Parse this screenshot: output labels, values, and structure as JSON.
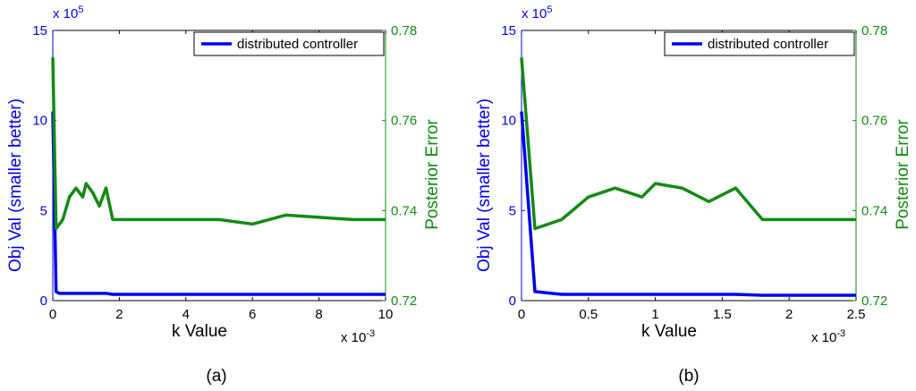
{
  "colors": {
    "obj": "#0000ee",
    "err": "#138a13",
    "axis": "#000000"
  },
  "chart_data": [
    {
      "type": "line",
      "caption": "(a)",
      "xlabel": "k Value",
      "ylabel_left": "Obj Val (smaller better)",
      "ylabel_right": "Posterior Error",
      "x_exponent_label": "x 10",
      "x_exponent_power": "-3",
      "y_exponent_label": "x 10",
      "y_exponent_power": "5",
      "xlim": [
        0,
        10
      ],
      "ylim_left": [
        0,
        15
      ],
      "ylim_right": [
        0.72,
        0.78
      ],
      "xticks": [
        0,
        2,
        4,
        6,
        8,
        10
      ],
      "yticks_left": [
        0,
        5,
        10,
        15
      ],
      "yticks_right": [
        0.72,
        0.74,
        0.76,
        0.78
      ],
      "legend": {
        "position": "top-right",
        "entries": [
          "distributed controller"
        ]
      },
      "series": [
        {
          "name": "distributed controller",
          "axis": "left",
          "color": "#0000ee",
          "x": [
            0,
            0.1,
            0.2,
            0.4,
            0.6,
            0.8,
            1.0,
            1.2,
            1.4,
            1.6,
            1.8,
            2,
            4,
            6,
            8,
            10
          ],
          "y": [
            10.5,
            0.5,
            0.4,
            0.4,
            0.4,
            0.4,
            0.4,
            0.4,
            0.4,
            0.4,
            0.35,
            0.35,
            0.35,
            0.35,
            0.35,
            0.35
          ]
        },
        {
          "name": "",
          "axis": "right",
          "color": "#138a13",
          "x": [
            0,
            0.1,
            0.3,
            0.5,
            0.7,
            0.9,
            1.0,
            1.2,
            1.4,
            1.6,
            1.8,
            3,
            4,
            5,
            6,
            7,
            8,
            9,
            10
          ],
          "y": [
            0.774,
            0.736,
            0.738,
            0.743,
            0.745,
            0.743,
            0.746,
            0.744,
            0.741,
            0.745,
            0.738,
            0.738,
            0.738,
            0.738,
            0.737,
            0.739,
            0.7385,
            0.738,
            0.738
          ]
        }
      ]
    },
    {
      "type": "line",
      "caption": "(b)",
      "xlabel": "k Value",
      "ylabel_left": "Obj Val (smaller better)",
      "ylabel_right": "Posterior Error",
      "x_exponent_label": "x 10",
      "x_exponent_power": "-3",
      "y_exponent_label": "x 10",
      "y_exponent_power": "5",
      "xlim": [
        0,
        2.5
      ],
      "ylim_left": [
        0,
        15
      ],
      "ylim_right": [
        0.72,
        0.78
      ],
      "xticks": [
        0,
        0.5,
        1,
        1.5,
        2,
        2.5
      ],
      "yticks_left": [
        0,
        5,
        10,
        15
      ],
      "yticks_right": [
        0.72,
        0.74,
        0.76,
        0.78
      ],
      "legend": {
        "position": "top-right",
        "entries": [
          "distributed controller"
        ]
      },
      "series": [
        {
          "name": "distributed controller",
          "axis": "left",
          "color": "#0000ee",
          "x": [
            0,
            0.1,
            0.3,
            0.5,
            0.7,
            0.9,
            1.0,
            1.2,
            1.4,
            1.6,
            1.8,
            2.0,
            2.5
          ],
          "y": [
            10.5,
            0.5,
            0.35,
            0.35,
            0.35,
            0.35,
            0.35,
            0.35,
            0.35,
            0.35,
            0.3,
            0.3,
            0.3
          ]
        },
        {
          "name": "",
          "axis": "right",
          "color": "#138a13",
          "x": [
            0,
            0.1,
            0.3,
            0.5,
            0.7,
            0.9,
            1.0,
            1.2,
            1.4,
            1.6,
            1.8,
            2.0,
            2.5
          ],
          "y": [
            0.774,
            0.736,
            0.738,
            0.743,
            0.745,
            0.743,
            0.746,
            0.745,
            0.742,
            0.745,
            0.738,
            0.738,
            0.738
          ]
        }
      ]
    }
  ]
}
